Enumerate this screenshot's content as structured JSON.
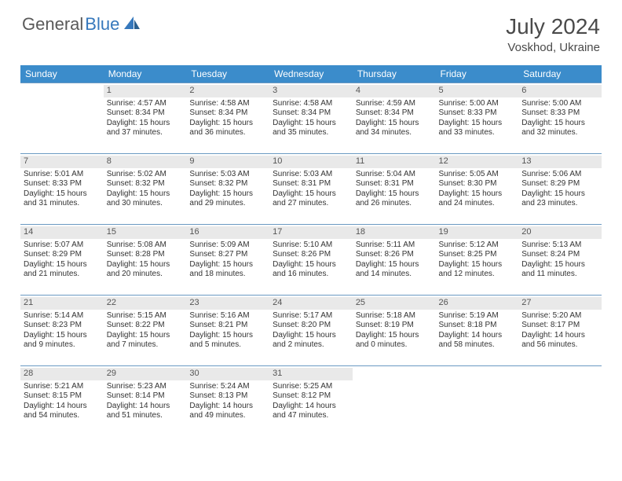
{
  "brand": {
    "part1": "General",
    "part2": "Blue"
  },
  "title": "July 2024",
  "location": "Voskhod, Ukraine",
  "colors": {
    "header_bg": "#3b8ccb",
    "header_text": "#ffffff",
    "daynum_bg": "#e9e9e9",
    "border": "#6a99c2",
    "logo_gray": "#5a5a5a",
    "logo_blue": "#3678bc"
  },
  "weekdays": [
    "Sunday",
    "Monday",
    "Tuesday",
    "Wednesday",
    "Thursday",
    "Friday",
    "Saturday"
  ],
  "start_offset": 1,
  "days": [
    {
      "n": 1,
      "sr": "4:57 AM",
      "ss": "8:34 PM",
      "dl": "15 hours and 37 minutes."
    },
    {
      "n": 2,
      "sr": "4:58 AM",
      "ss": "8:34 PM",
      "dl": "15 hours and 36 minutes."
    },
    {
      "n": 3,
      "sr": "4:58 AM",
      "ss": "8:34 PM",
      "dl": "15 hours and 35 minutes."
    },
    {
      "n": 4,
      "sr": "4:59 AM",
      "ss": "8:34 PM",
      "dl": "15 hours and 34 minutes."
    },
    {
      "n": 5,
      "sr": "5:00 AM",
      "ss": "8:33 PM",
      "dl": "15 hours and 33 minutes."
    },
    {
      "n": 6,
      "sr": "5:00 AM",
      "ss": "8:33 PM",
      "dl": "15 hours and 32 minutes."
    },
    {
      "n": 7,
      "sr": "5:01 AM",
      "ss": "8:33 PM",
      "dl": "15 hours and 31 minutes."
    },
    {
      "n": 8,
      "sr": "5:02 AM",
      "ss": "8:32 PM",
      "dl": "15 hours and 30 minutes."
    },
    {
      "n": 9,
      "sr": "5:03 AM",
      "ss": "8:32 PM",
      "dl": "15 hours and 29 minutes."
    },
    {
      "n": 10,
      "sr": "5:03 AM",
      "ss": "8:31 PM",
      "dl": "15 hours and 27 minutes."
    },
    {
      "n": 11,
      "sr": "5:04 AM",
      "ss": "8:31 PM",
      "dl": "15 hours and 26 minutes."
    },
    {
      "n": 12,
      "sr": "5:05 AM",
      "ss": "8:30 PM",
      "dl": "15 hours and 24 minutes."
    },
    {
      "n": 13,
      "sr": "5:06 AM",
      "ss": "8:29 PM",
      "dl": "15 hours and 23 minutes."
    },
    {
      "n": 14,
      "sr": "5:07 AM",
      "ss": "8:29 PM",
      "dl": "15 hours and 21 minutes."
    },
    {
      "n": 15,
      "sr": "5:08 AM",
      "ss": "8:28 PM",
      "dl": "15 hours and 20 minutes."
    },
    {
      "n": 16,
      "sr": "5:09 AM",
      "ss": "8:27 PM",
      "dl": "15 hours and 18 minutes."
    },
    {
      "n": 17,
      "sr": "5:10 AM",
      "ss": "8:26 PM",
      "dl": "15 hours and 16 minutes."
    },
    {
      "n": 18,
      "sr": "5:11 AM",
      "ss": "8:26 PM",
      "dl": "15 hours and 14 minutes."
    },
    {
      "n": 19,
      "sr": "5:12 AM",
      "ss": "8:25 PM",
      "dl": "15 hours and 12 minutes."
    },
    {
      "n": 20,
      "sr": "5:13 AM",
      "ss": "8:24 PM",
      "dl": "15 hours and 11 minutes."
    },
    {
      "n": 21,
      "sr": "5:14 AM",
      "ss": "8:23 PM",
      "dl": "15 hours and 9 minutes."
    },
    {
      "n": 22,
      "sr": "5:15 AM",
      "ss": "8:22 PM",
      "dl": "15 hours and 7 minutes."
    },
    {
      "n": 23,
      "sr": "5:16 AM",
      "ss": "8:21 PM",
      "dl": "15 hours and 5 minutes."
    },
    {
      "n": 24,
      "sr": "5:17 AM",
      "ss": "8:20 PM",
      "dl": "15 hours and 2 minutes."
    },
    {
      "n": 25,
      "sr": "5:18 AM",
      "ss": "8:19 PM",
      "dl": "15 hours and 0 minutes."
    },
    {
      "n": 26,
      "sr": "5:19 AM",
      "ss": "8:18 PM",
      "dl": "14 hours and 58 minutes."
    },
    {
      "n": 27,
      "sr": "5:20 AM",
      "ss": "8:17 PM",
      "dl": "14 hours and 56 minutes."
    },
    {
      "n": 28,
      "sr": "5:21 AM",
      "ss": "8:15 PM",
      "dl": "14 hours and 54 minutes."
    },
    {
      "n": 29,
      "sr": "5:23 AM",
      "ss": "8:14 PM",
      "dl": "14 hours and 51 minutes."
    },
    {
      "n": 30,
      "sr": "5:24 AM",
      "ss": "8:13 PM",
      "dl": "14 hours and 49 minutes."
    },
    {
      "n": 31,
      "sr": "5:25 AM",
      "ss": "8:12 PM",
      "dl": "14 hours and 47 minutes."
    }
  ],
  "labels": {
    "sunrise": "Sunrise:",
    "sunset": "Sunset:",
    "daylight": "Daylight:"
  }
}
